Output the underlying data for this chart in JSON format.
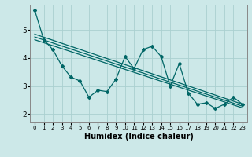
{
  "title": "",
  "xlabel": "Humidex (Indice chaleur)",
  "ylabel": "",
  "bg_color": "#cce8e8",
  "grid_color": "#aad0d0",
  "line_color": "#006666",
  "xlim": [
    -0.5,
    23.5
  ],
  "ylim": [
    1.7,
    5.9
  ],
  "yticks": [
    2,
    3,
    4,
    5
  ],
  "xticks": [
    0,
    1,
    2,
    3,
    4,
    5,
    6,
    7,
    8,
    9,
    10,
    11,
    12,
    13,
    14,
    15,
    16,
    17,
    18,
    19,
    20,
    21,
    22,
    23
  ],
  "line1_x": [
    0,
    1,
    2,
    3,
    4,
    5,
    6,
    7,
    8,
    9,
    10,
    11,
    12,
    13,
    14,
    15,
    16,
    17,
    18,
    19,
    20,
    21,
    22,
    23
  ],
  "line1_y": [
    5.7,
    4.65,
    4.3,
    3.72,
    3.32,
    3.18,
    2.6,
    2.85,
    2.8,
    3.25,
    4.05,
    3.62,
    4.3,
    4.42,
    4.05,
    3.0,
    3.8,
    2.75,
    2.35,
    2.4,
    2.2,
    2.35,
    2.6,
    2.35
  ],
  "line2_x": [
    0,
    23
  ],
  "line2_y": [
    4.85,
    2.35
  ],
  "line3_x": [
    0,
    23
  ],
  "line3_y": [
    4.65,
    2.22
  ],
  "line4_x": [
    0,
    23
  ],
  "line4_y": [
    4.75,
    2.28
  ]
}
